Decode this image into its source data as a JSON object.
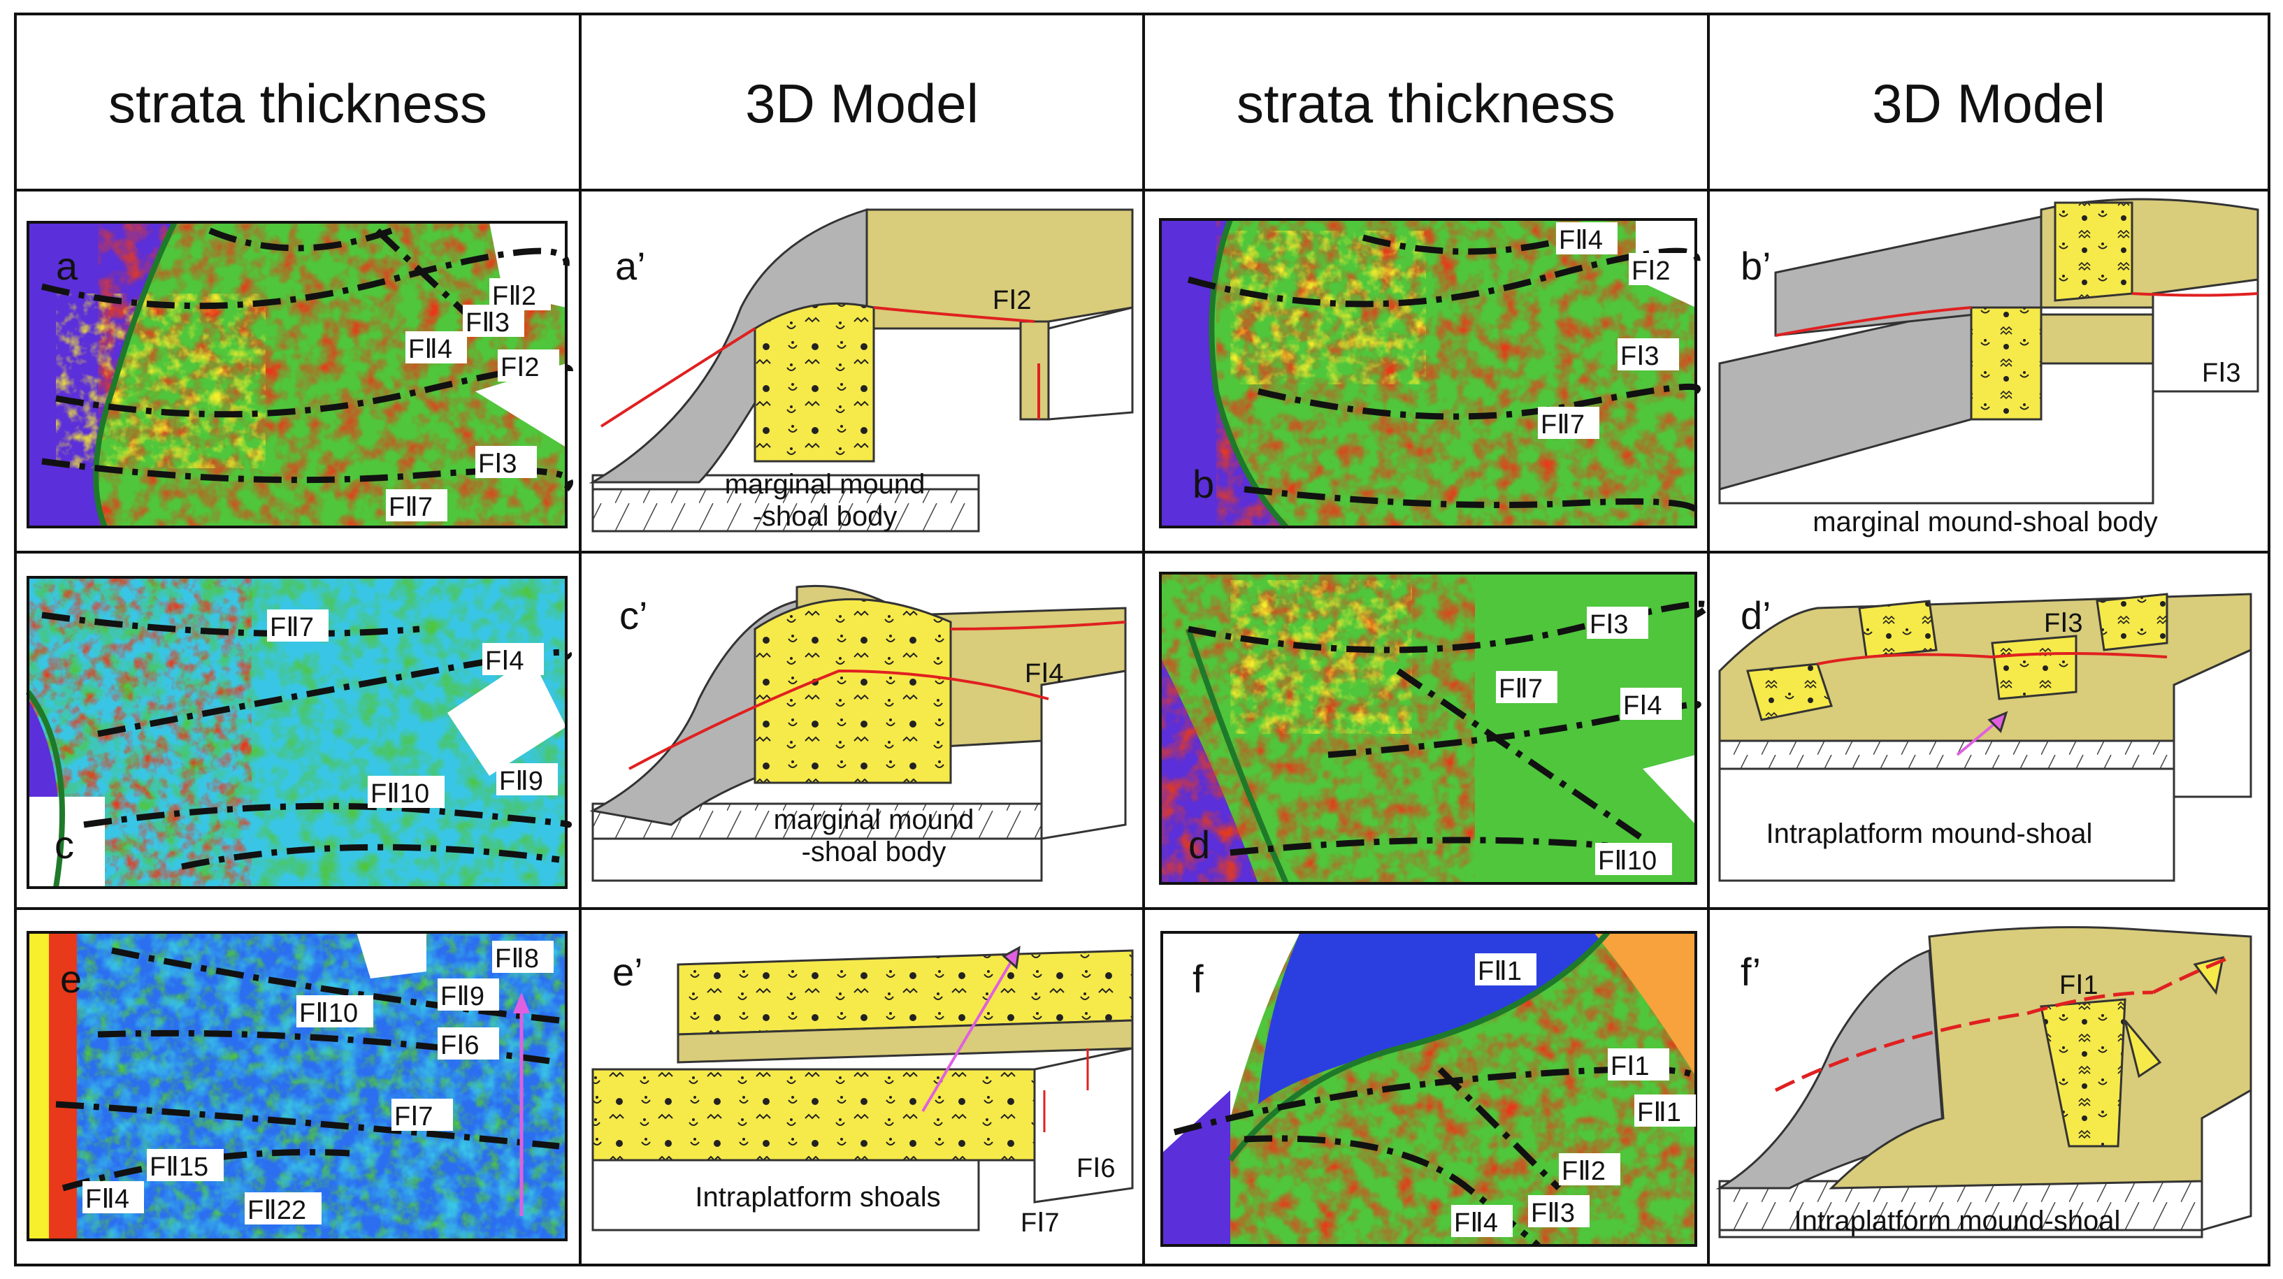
{
  "headers": [
    "strata thickness",
    "3D Model",
    "strata thickness",
    "3D Model"
  ],
  "panels": {
    "a": {
      "label": "a",
      "faults": [
        "FⅡ2",
        "FⅡ3",
        "FⅡ4",
        "FⅠ2",
        "FⅠ3",
        "FⅡ7"
      ]
    },
    "a2": {
      "label": "a’",
      "faults": [
        "FⅠ2"
      ],
      "caption": [
        "marginal mound",
        "-shoal body"
      ]
    },
    "b": {
      "label": "b",
      "faults": [
        "FⅡ4",
        "FⅠ2",
        "FⅠ3",
        "FⅡ7"
      ]
    },
    "b2": {
      "label": "b’",
      "faults": [
        "FⅠ3"
      ],
      "caption": [
        "marginal mound-shoal body"
      ]
    },
    "c": {
      "label": "c",
      "faults": [
        "FⅡ7",
        "FⅠ4",
        "FⅡ10",
        "FⅡ9"
      ]
    },
    "c2": {
      "label": "c’",
      "faults": [
        "FⅠ4"
      ],
      "caption": [
        "marginal mound",
        "-shoal body"
      ]
    },
    "d": {
      "label": "d",
      "faults": [
        "FⅠ3",
        "FⅡ7",
        "FⅠ4",
        "FⅡ10"
      ]
    },
    "d2": {
      "label": "d’",
      "faults": [
        "FⅠ3"
      ],
      "caption": [
        "Intraplatform mound-shoal"
      ]
    },
    "e": {
      "label": "e",
      "faults": [
        "FⅡ8",
        "FⅡ10",
        "FⅡ9",
        "FⅠ6",
        "FⅠ7",
        "FⅡ15",
        "FⅡ4",
        "FⅡ22"
      ]
    },
    "e2": {
      "label": "e’",
      "faults": [
        "FⅠ6",
        "FⅠ7"
      ],
      "caption": [
        "Intraplatform shoals"
      ]
    },
    "f": {
      "label": "f",
      "faults": [
        "FⅡ1",
        "FⅠ1",
        "FⅡ1",
        "FⅡ2",
        "FⅡ4",
        "FⅡ3"
      ]
    },
    "f2": {
      "label": "f’",
      "faults": [
        "FⅠ1"
      ],
      "caption": [
        "Intraplatform mound-shoal"
      ]
    }
  },
  "colors": {
    "grid": "#111111",
    "map_green": "#4fc63c",
    "map_red": "#e8391a",
    "map_yellow": "#f7ee2c",
    "map_blue": "#2b6ff0",
    "map_cyan": "#39c6e6",
    "map_violet": "#5b2fd9",
    "block_top": "#d9cc7a",
    "block_gray": "#b4b4b4",
    "shoal_yellow": "#f6e94a",
    "fault_red": "#e02020"
  }
}
